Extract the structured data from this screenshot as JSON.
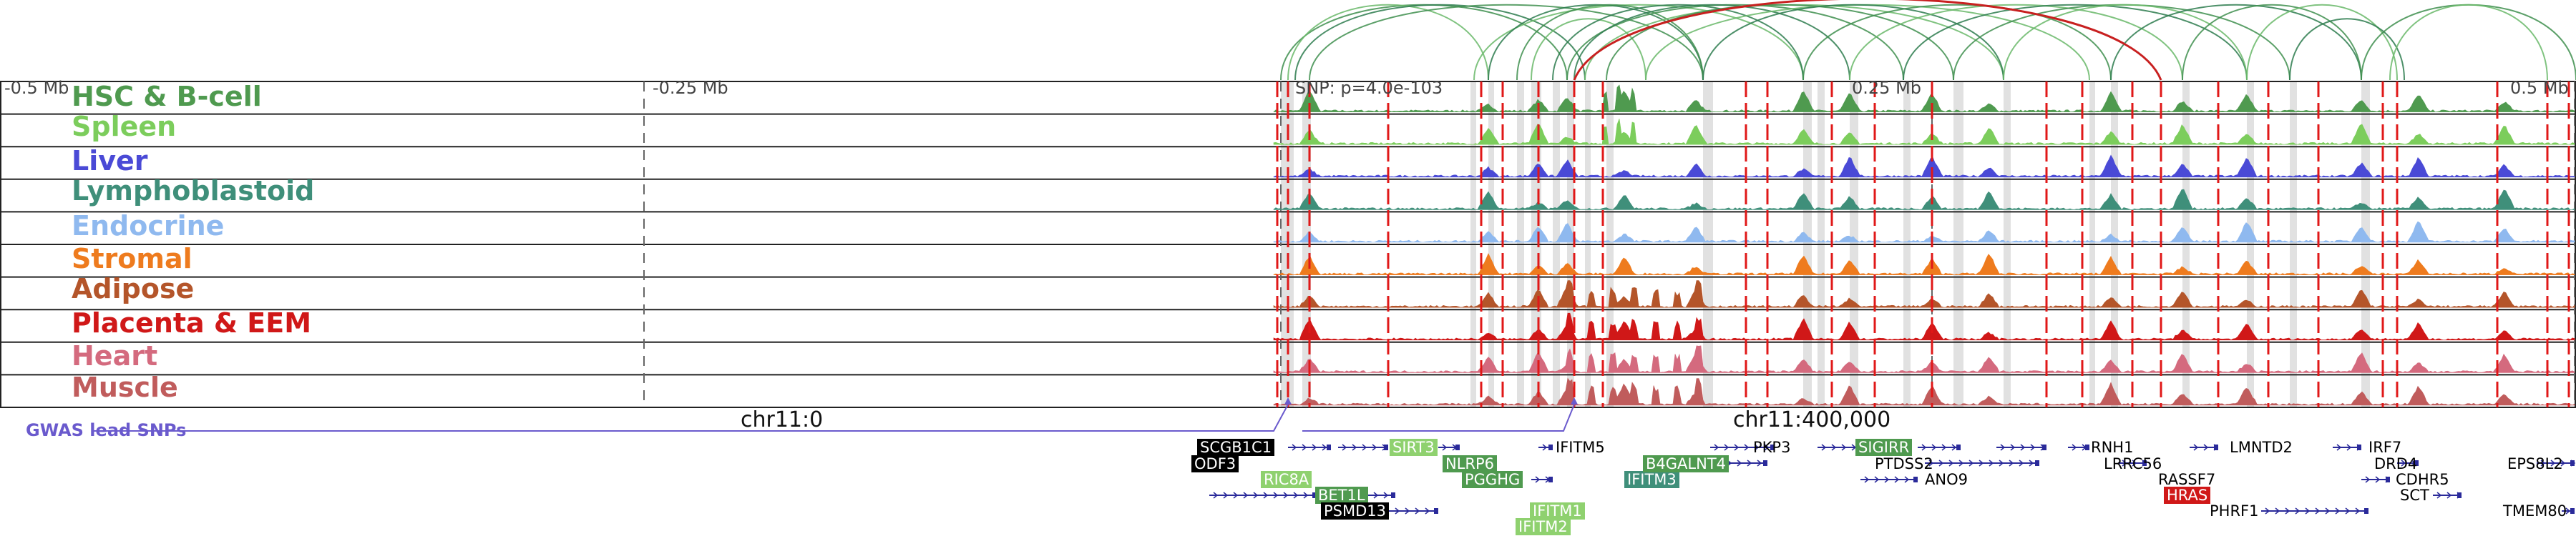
{
  "ruler": {
    "start_label": "-0.5 Mb",
    "q1_label": "-0.25 Mb",
    "snp_label": "SNP: p=4.0e-103",
    "q3_label": "0.25 Mb",
    "end_label": "0.5 Mb"
  },
  "tracks": [
    {
      "name": "HSC & B-cell",
      "color": "#4f9a4f"
    },
    {
      "name": "Spleen",
      "color": "#7ccd5c"
    },
    {
      "name": "Liver",
      "color": "#4a4ad6"
    },
    {
      "name": "Lymphoblastoid",
      "color": "#3f8f7a"
    },
    {
      "name": "Endocrine",
      "color": "#8fb9ef"
    },
    {
      "name": "Stromal",
      "color": "#ee7b1e"
    },
    {
      "name": "Adipose",
      "color": "#b4552a"
    },
    {
      "name": "Placenta & EEM",
      "color": "#d01818"
    },
    {
      "name": "Heart",
      "color": "#d46a7e"
    },
    {
      "name": "Muscle",
      "color": "#c05c5c"
    }
  ],
  "gwas_label": "GWAS lead SNPs",
  "chr_labels": [
    "chr11:0",
    "chr11:400,000"
  ],
  "genes": [
    {
      "name": "SCGB1C1",
      "style": "black"
    },
    {
      "name": "ODF3",
      "style": "black"
    },
    {
      "name": "RIC8A",
      "style": "lightgreen"
    },
    {
      "name": "BET1L",
      "style": "green"
    },
    {
      "name": "PSMD13",
      "style": "black"
    },
    {
      "name": "SIRT3",
      "style": "lightgreen"
    },
    {
      "name": "NLRP6",
      "style": "green"
    },
    {
      "name": "PGGHG",
      "style": "green"
    },
    {
      "name": "IFITM5",
      "style": "plain"
    },
    {
      "name": "IFITM3",
      "style": "teal"
    },
    {
      "name": "B4GALNT4",
      "style": "green"
    },
    {
      "name": "IFITM1",
      "style": "lightgreen"
    },
    {
      "name": "IFITM2",
      "style": "lightgreen"
    },
    {
      "name": "PKP3",
      "style": "plain"
    },
    {
      "name": "SIGIRR",
      "style": "green"
    },
    {
      "name": "PTDSS2",
      "style": "plain"
    },
    {
      "name": "ANO9",
      "style": "plain"
    },
    {
      "name": "RNH1",
      "style": "plain"
    },
    {
      "name": "LRRC56",
      "style": "plain"
    },
    {
      "name": "RASSF7",
      "style": "plain"
    },
    {
      "name": "HRAS",
      "style": "red"
    },
    {
      "name": "PHRF1",
      "style": "plain"
    },
    {
      "name": "LMNTD2",
      "style": "plain"
    },
    {
      "name": "IRF7",
      "style": "plain"
    },
    {
      "name": "DRD4",
      "style": "plain"
    },
    {
      "name": "CDHR5",
      "style": "plain"
    },
    {
      "name": "SCT",
      "style": "plain"
    },
    {
      "name": "EPS8L2",
      "style": "plain"
    },
    {
      "name": "TMEM80",
      "style": "plain"
    }
  ]
}
